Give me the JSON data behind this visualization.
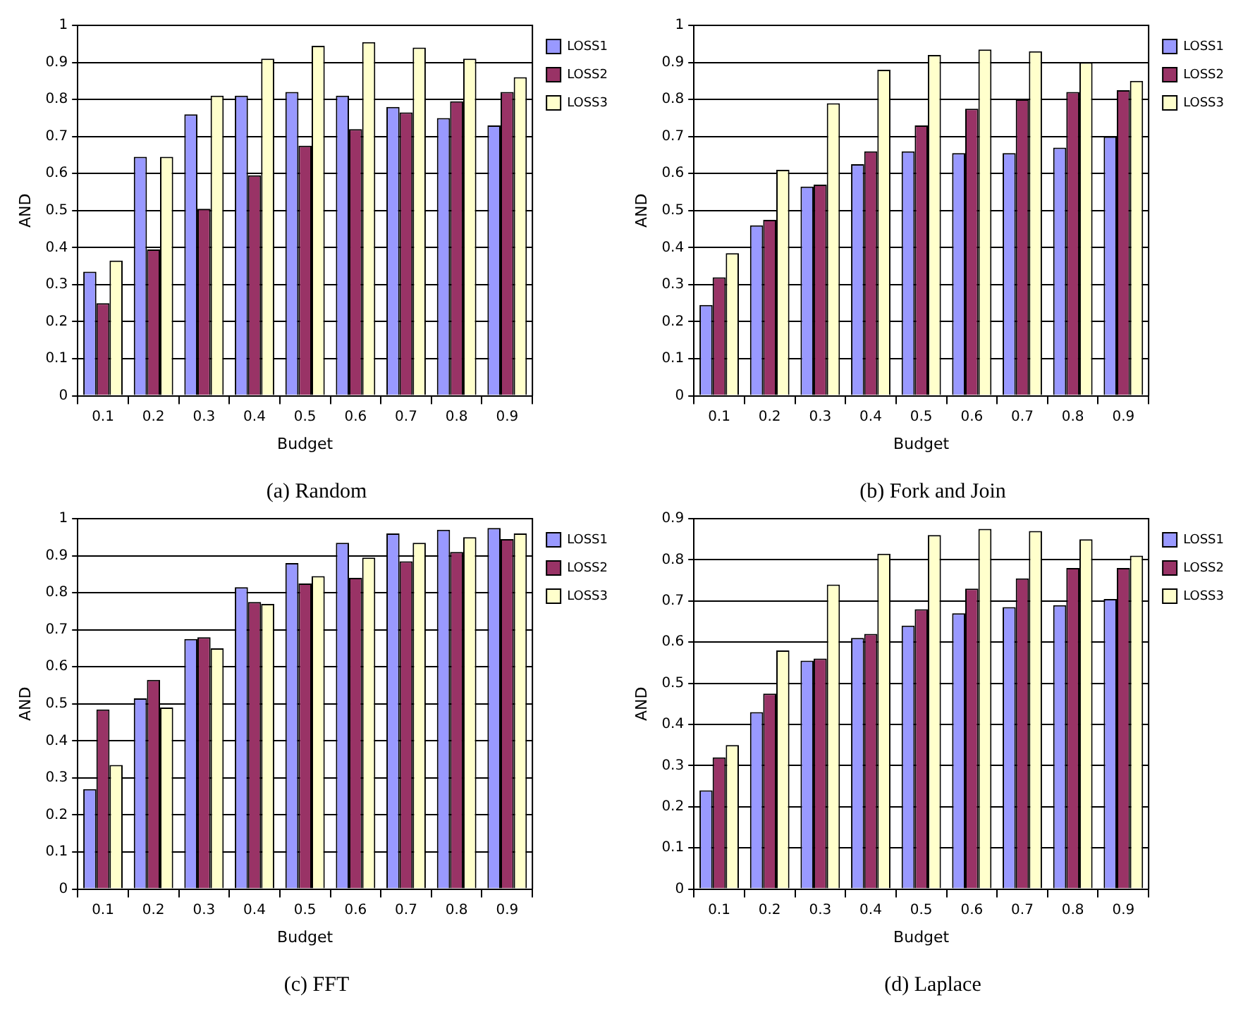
{
  "chart_data": [
    {
      "type": "bar",
      "title": "(a) Random",
      "xlabel": "Budget",
      "ylabel": "AND",
      "categories": [
        "0.1",
        "0.2",
        "0.3",
        "0.4",
        "0.5",
        "0.6",
        "0.7",
        "0.8",
        "0.9"
      ],
      "ylim": [
        0,
        1
      ],
      "yticks": [
        0,
        0.1,
        0.2,
        0.3,
        0.4,
        0.5,
        0.6,
        0.7,
        0.8,
        0.9,
        1
      ],
      "grid": "y",
      "legend": "top right",
      "series": [
        {
          "name": "LOSS1",
          "color": "#9999ff",
          "values": [
            0.335,
            0.645,
            0.76,
            0.81,
            0.82,
            0.81,
            0.78,
            0.75,
            0.73
          ]
        },
        {
          "name": "LOSS2",
          "color": "#993366",
          "values": [
            0.25,
            0.395,
            0.505,
            0.595,
            0.675,
            0.72,
            0.765,
            0.795,
            0.82
          ]
        },
        {
          "name": "LOSS3",
          "color": "#ffffcc",
          "values": [
            0.365,
            0.645,
            0.81,
            0.91,
            0.945,
            0.955,
            0.94,
            0.91,
            0.86
          ]
        }
      ]
    },
    {
      "type": "bar",
      "title": "(b) Fork and Join",
      "xlabel": "Budget",
      "ylabel": "AND",
      "categories": [
        "0.1",
        "0.2",
        "0.3",
        "0.4",
        "0.5",
        "0.6",
        "0.7",
        "0.8",
        "0.9"
      ],
      "ylim": [
        0,
        1
      ],
      "yticks": [
        0,
        0.1,
        0.2,
        0.3,
        0.4,
        0.5,
        0.6,
        0.7,
        0.8,
        0.9,
        1
      ],
      "grid": "y",
      "legend": "top right",
      "series": [
        {
          "name": "LOSS1",
          "color": "#9999ff",
          "values": [
            0.245,
            0.46,
            0.565,
            0.625,
            0.66,
            0.655,
            0.655,
            0.67,
            0.7
          ]
        },
        {
          "name": "LOSS2",
          "color": "#993366",
          "values": [
            0.32,
            0.475,
            0.57,
            0.66,
            0.73,
            0.775,
            0.8,
            0.82,
            0.825
          ]
        },
        {
          "name": "LOSS3",
          "color": "#ffffcc",
          "values": [
            0.385,
            0.61,
            0.79,
            0.88,
            0.92,
            0.935,
            0.93,
            0.9,
            0.85
          ]
        }
      ]
    },
    {
      "type": "bar",
      "title": "(c) FFT",
      "xlabel": "Budget",
      "ylabel": "AND",
      "categories": [
        "0.1",
        "0.2",
        "0.3",
        "0.4",
        "0.5",
        "0.6",
        "0.7",
        "0.8",
        "0.9"
      ],
      "ylim": [
        0,
        1
      ],
      "yticks": [
        0,
        0.1,
        0.2,
        0.3,
        0.4,
        0.5,
        0.6,
        0.7,
        0.8,
        0.9,
        1
      ],
      "grid": "y",
      "legend": "top right",
      "series": [
        {
          "name": "LOSS1",
          "color": "#9999ff",
          "values": [
            0.27,
            0.515,
            0.675,
            0.815,
            0.88,
            0.935,
            0.96,
            0.97,
            0.975
          ]
        },
        {
          "name": "LOSS2",
          "color": "#993366",
          "values": [
            0.485,
            0.565,
            0.68,
            0.775,
            0.825,
            0.84,
            0.885,
            0.91,
            0.945
          ]
        },
        {
          "name": "LOSS3",
          "color": "#ffffcc",
          "values": [
            0.335,
            0.49,
            0.65,
            0.77,
            0.845,
            0.895,
            0.935,
            0.95,
            0.96
          ]
        }
      ]
    },
    {
      "type": "bar",
      "title": "(d) Laplace",
      "xlabel": "Budget",
      "ylabel": "AND",
      "categories": [
        "0.1",
        "0.2",
        "0.3",
        "0.4",
        "0.5",
        "0.6",
        "0.7",
        "0.8",
        "0.9"
      ],
      "ylim": [
        0,
        0.9
      ],
      "yticks": [
        0,
        0.1,
        0.2,
        0.3,
        0.4,
        0.5,
        0.6,
        0.7,
        0.8,
        0.9
      ],
      "grid": "y",
      "legend": "top right",
      "series": [
        {
          "name": "LOSS1",
          "color": "#9999ff",
          "values": [
            0.24,
            0.43,
            0.555,
            0.61,
            0.64,
            0.67,
            0.685,
            0.69,
            0.705
          ]
        },
        {
          "name": "LOSS2",
          "color": "#993366",
          "values": [
            0.32,
            0.475,
            0.56,
            0.62,
            0.68,
            0.73,
            0.755,
            0.78,
            0.78
          ]
        },
        {
          "name": "LOSS3",
          "color": "#ffffcc",
          "values": [
            0.35,
            0.58,
            0.74,
            0.815,
            0.86,
            0.875,
            0.87,
            0.85,
            0.81
          ]
        }
      ]
    }
  ]
}
